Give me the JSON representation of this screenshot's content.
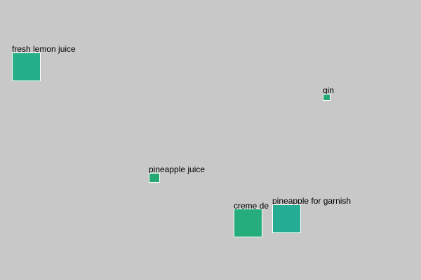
{
  "canvas": {
    "background": "#c8c8c8"
  },
  "items": [
    {
      "id": "lemon",
      "label": "fresh lemon juice",
      "color": "#25b08a"
    },
    {
      "id": "gin",
      "label": "gin",
      "color": "#25a873"
    },
    {
      "id": "pjuice",
      "label": "pineapple juice",
      "color": "#25a873"
    },
    {
      "id": "creme",
      "label": "creme de",
      "color": "#25ad7b"
    },
    {
      "id": "garnish",
      "label": "pineapple for garnish",
      "color": "#25ad94"
    }
  ]
}
